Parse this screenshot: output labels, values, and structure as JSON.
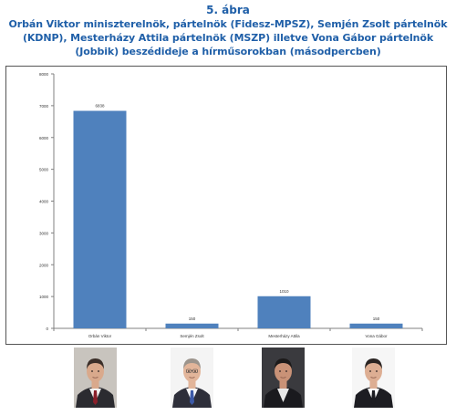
{
  "figure": {
    "number": "5. ábra",
    "title": "Orbán Viktor miniszterelnök, pártelnök (Fidesz-MPSZ), Semjén Zsolt pártelnök (KDNP), Mesterházy Attila pártelnök (MSZP) illetve Vona Gábor pártelnök (Jobbik) beszédideje a hírműsorokban (másodpercben)"
  },
  "chart_data": {
    "type": "bar",
    "categories": [
      "Orbán Viktor",
      "Semjén Zsolt",
      "Mesterházy Attila",
      "Vona Gábor"
    ],
    "values": [
      6838,
      150,
      1010,
      150
    ],
    "data_labels": [
      "6838",
      "150",
      "1010",
      "150"
    ],
    "ylim": [
      0,
      8000
    ],
    "yticks": [
      0,
      1000,
      2000,
      3000,
      4000,
      5000,
      6000,
      7000,
      8000
    ],
    "ytick_labels": [
      "0",
      "1000",
      "2000",
      "3000",
      "4000",
      "5000",
      "6000",
      "7000",
      "8000"
    ],
    "grid": false,
    "legend": false,
    "colors": {
      "bar": "#4f81bd",
      "axis": "#808080"
    }
  },
  "portraits": [
    {
      "person": "Orbán Viktor",
      "icon": "portrait-photo"
    },
    {
      "person": "Semjén Zsolt",
      "icon": "portrait-photo"
    },
    {
      "person": "Mesterházy Attila",
      "icon": "portrait-photo"
    },
    {
      "person": "Vona Gábor",
      "icon": "portrait-photo"
    }
  ]
}
